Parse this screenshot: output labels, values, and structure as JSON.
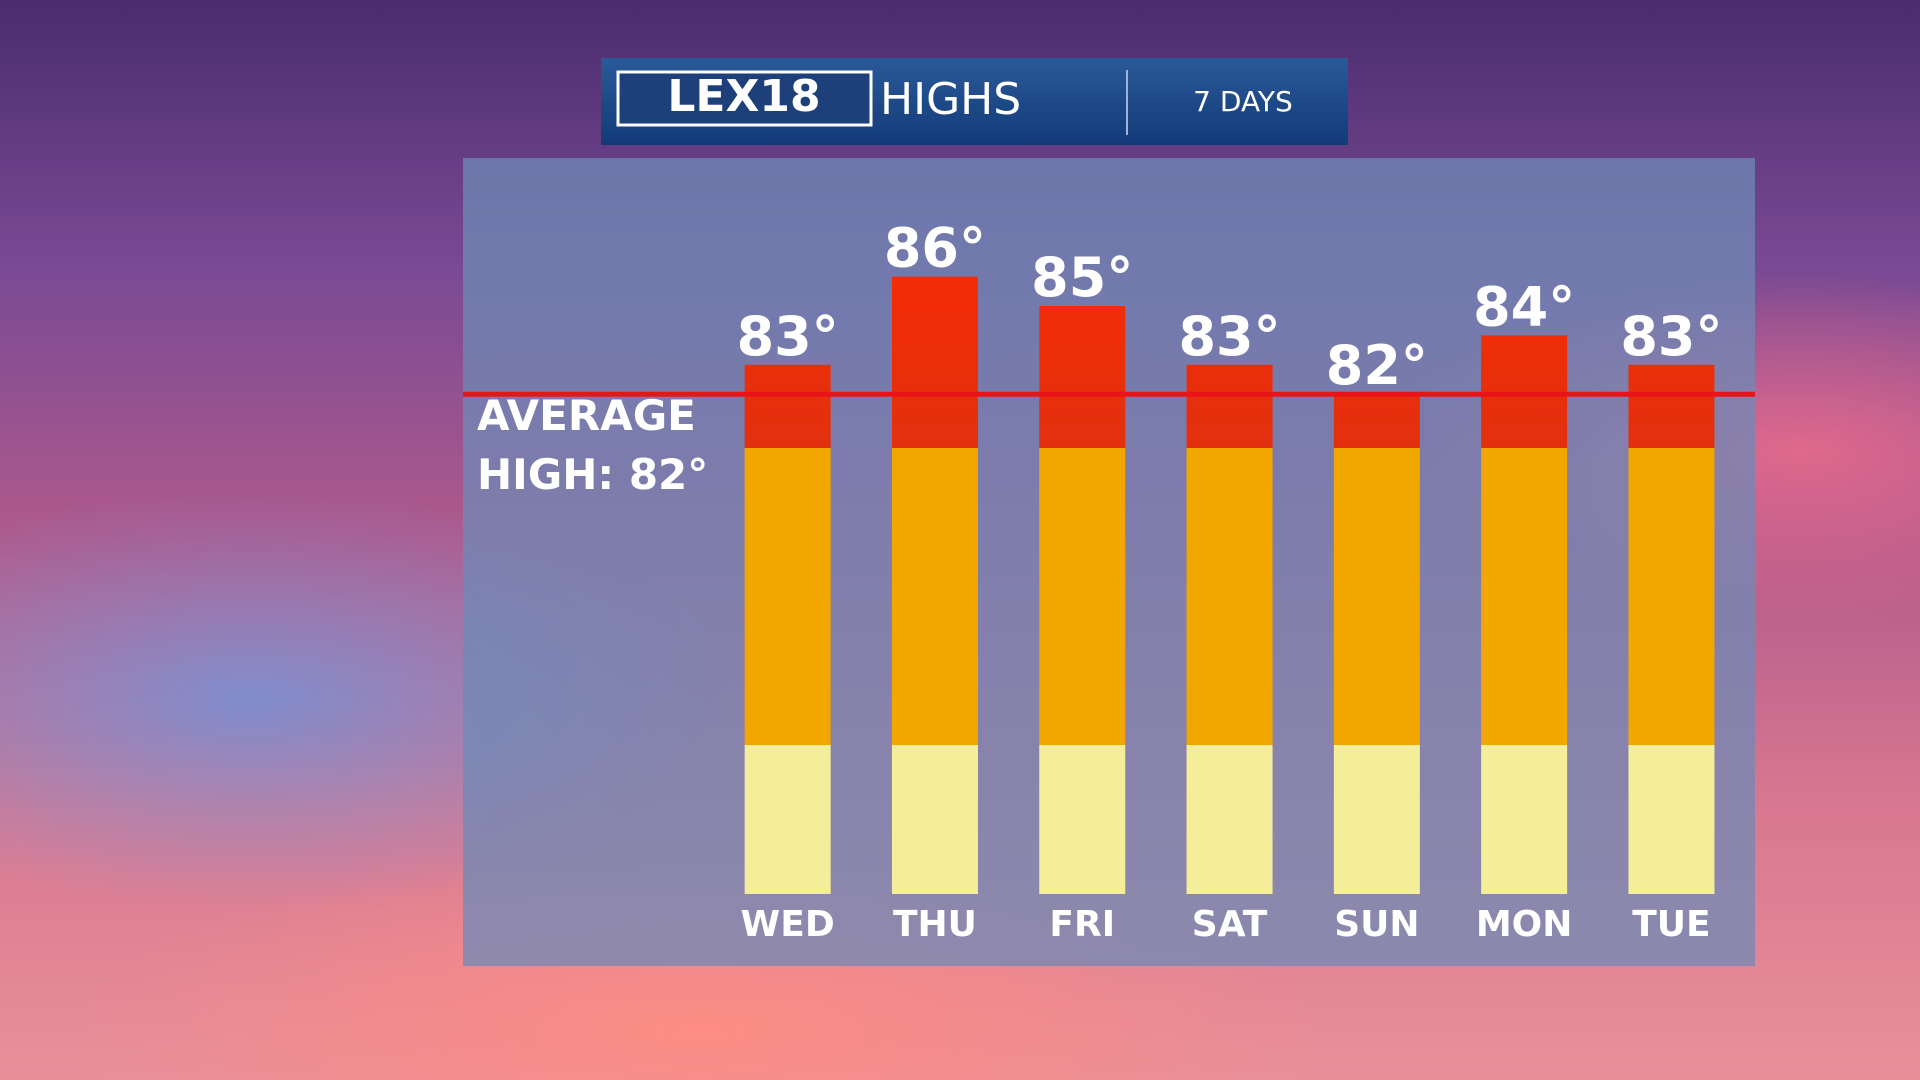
{
  "header": {
    "logo": "LEX18",
    "title": "HIGHS",
    "period": "7 DAYS"
  },
  "chart_data": {
    "type": "bar",
    "categories": [
      "WED",
      "THU",
      "FRI",
      "SAT",
      "SUN",
      "MON",
      "TUE"
    ],
    "values": [
      83,
      86,
      85,
      83,
      82,
      84,
      83
    ],
    "value_labels": [
      "83°",
      "86°",
      "85°",
      "83°",
      "82°",
      "84°",
      "83°"
    ],
    "ylim": [
      65,
      90
    ],
    "average": {
      "value": 82,
      "label_lines": [
        "AVERAGE",
        "HIGH: 82°"
      ],
      "color": "#e8141a"
    }
  }
}
